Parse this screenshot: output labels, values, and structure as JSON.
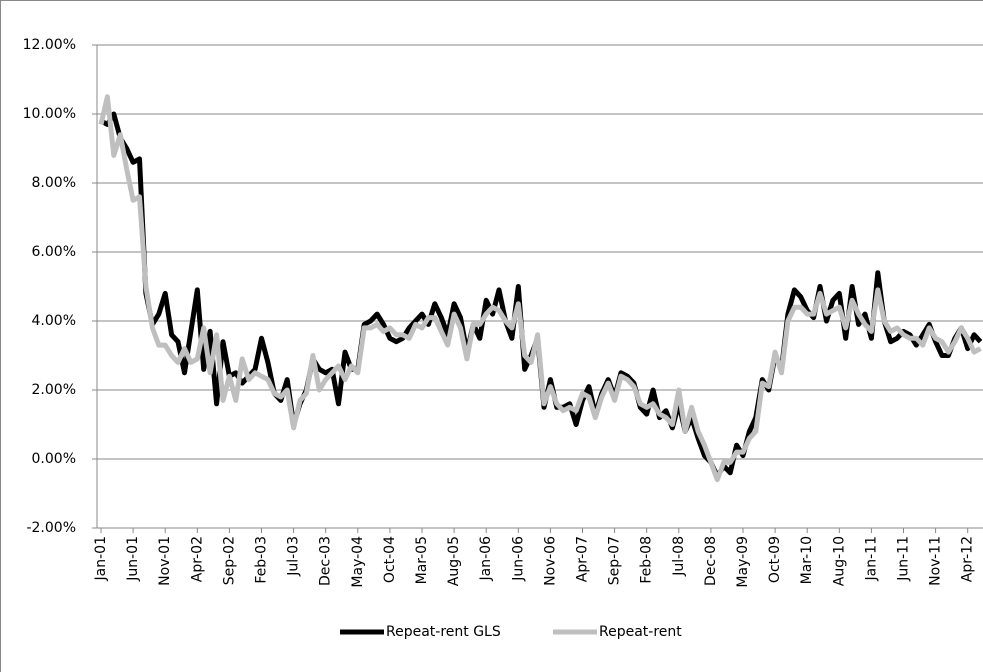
{
  "chart_data": {
    "type": "line",
    "categories": [
      "Jan-01",
      null,
      null,
      null,
      null,
      "Jun-01",
      null,
      null,
      null,
      null,
      "Nov-01",
      null,
      null,
      null,
      null,
      "Apr-02",
      null,
      null,
      null,
      null,
      "Sep-02",
      null,
      null,
      null,
      null,
      "Feb-03",
      null,
      null,
      null,
      null,
      "Jul-03",
      null,
      null,
      null,
      null,
      "Dec-03",
      null,
      null,
      null,
      null,
      "May-04",
      null,
      null,
      null,
      null,
      "Oct-04",
      null,
      null,
      null,
      null,
      "Mar-05",
      null,
      null,
      null,
      null,
      "Aug-05",
      null,
      null,
      null,
      null,
      "Jan-06",
      null,
      null,
      null,
      null,
      "Jun-06",
      null,
      null,
      null,
      null,
      "Nov-06",
      null,
      null,
      null,
      null,
      "Apr-07",
      null,
      null,
      null,
      null,
      "Sep-07",
      null,
      null,
      null,
      null,
      "Feb-08",
      null,
      null,
      null,
      null,
      "Jul-08",
      null,
      null,
      null,
      null,
      "Dec-08",
      null,
      null,
      null,
      null,
      "May-09",
      null,
      null,
      null,
      null,
      "Oct-09",
      null,
      null,
      null,
      null,
      "Mar-10",
      null,
      null,
      null,
      null,
      "Aug-10",
      null,
      null,
      null,
      null,
      "Jan-11",
      null,
      null,
      null,
      null,
      "Jun-11",
      null,
      null,
      null,
      null,
      "Nov-11",
      null,
      null,
      null,
      null,
      "Apr-12",
      null,
      null
    ],
    "series": [
      {
        "name": "Repeat-rent GLS",
        "color": "#000000",
        "values": [
          9.8,
          9.7,
          10.0,
          9.3,
          9.0,
          8.6,
          8.7,
          4.8,
          3.9,
          4.2,
          4.8,
          3.6,
          3.4,
          2.5,
          3.7,
          4.9,
          2.6,
          3.7,
          1.6,
          3.4,
          2.4,
          2.5,
          2.2,
          2.4,
          2.6,
          3.5,
          2.8,
          1.9,
          1.7,
          2.3,
          1.0,
          1.6,
          2.0,
          2.9,
          2.6,
          2.5,
          2.6,
          1.6,
          3.1,
          2.6,
          2.6,
          3.9,
          4.0,
          4.2,
          3.9,
          3.5,
          3.4,
          3.5,
          3.8,
          4.0,
          4.2,
          3.9,
          4.5,
          4.1,
          3.6,
          4.5,
          4.1,
          3.1,
          3.9,
          3.5,
          4.6,
          4.2,
          4.9,
          4.0,
          3.5,
          5.0,
          2.6,
          3.0,
          3.5,
          1.5,
          2.3,
          1.5,
          1.5,
          1.6,
          1.0,
          1.7,
          2.1,
          1.3,
          1.9,
          2.3,
          1.8,
          2.5,
          2.4,
          2.2,
          1.5,
          1.3,
          2.0,
          1.2,
          1.4,
          0.9,
          1.6,
          0.8,
          1.2,
          0.6,
          0.1,
          -0.1,
          -0.5,
          -0.2,
          -0.4,
          0.4,
          0.1,
          0.8,
          1.2,
          2.3,
          2.0,
          3.0,
          2.6,
          4.2,
          4.9,
          4.7,
          4.3,
          4.1,
          5.0,
          4.0,
          4.6,
          4.8,
          3.5,
          5.0,
          3.9,
          4.2,
          3.5,
          5.4,
          4.0,
          3.4,
          3.5,
          3.7,
          3.6,
          3.3,
          3.6,
          3.9,
          3.4,
          3.0,
          3.0,
          3.5,
          3.8,
          3.2,
          3.6,
          3.4
        ]
      },
      {
        "name": "Repeat-rent",
        "color": "#bfbfbf",
        "values": [
          9.7,
          10.5,
          8.8,
          9.4,
          8.4,
          7.5,
          7.6,
          5.0,
          3.8,
          3.3,
          3.3,
          3.0,
          2.8,
          3.2,
          2.8,
          2.9,
          3.8,
          2.5,
          3.6,
          1.7,
          2.4,
          1.7,
          2.9,
          2.3,
          2.5,
          2.4,
          2.3,
          1.9,
          1.8,
          2.0,
          0.9,
          1.7,
          1.9,
          3.0,
          2.0,
          2.3,
          2.5,
          2.7,
          2.3,
          2.7,
          2.5,
          3.8,
          3.8,
          3.9,
          3.7,
          3.8,
          3.6,
          3.6,
          3.5,
          3.9,
          3.8,
          4.1,
          4.1,
          3.7,
          3.3,
          4.2,
          3.8,
          2.9,
          3.9,
          3.9,
          4.2,
          4.4,
          4.3,
          4.0,
          3.8,
          4.5,
          3.0,
          2.8,
          3.6,
          1.6,
          2.1,
          1.6,
          1.4,
          1.5,
          1.4,
          1.9,
          1.8,
          1.2,
          1.8,
          2.2,
          1.7,
          2.4,
          2.3,
          2.1,
          1.6,
          1.5,
          1.6,
          1.3,
          1.2,
          1.0,
          2.0,
          0.8,
          1.5,
          0.8,
          0.4,
          -0.1,
          -0.6,
          -0.1,
          -0.1,
          0.2,
          0.2,
          0.6,
          0.8,
          2.2,
          2.1,
          3.1,
          2.5,
          4.0,
          4.4,
          4.4,
          4.2,
          4.2,
          4.8,
          4.2,
          4.3,
          4.4,
          3.8,
          4.6,
          4.2,
          3.9,
          3.7,
          4.9,
          4.0,
          3.7,
          3.8,
          3.6,
          3.5,
          3.5,
          3.3,
          3.8,
          3.5,
          3.4,
          3.1,
          3.4,
          3.8,
          3.5,
          3.1,
          3.2
        ]
      }
    ],
    "ylim": [
      -2,
      12
    ],
    "yticks": [
      {
        "value": -2,
        "label": "-2.00%"
      },
      {
        "value": 0,
        "label": "0.00%"
      },
      {
        "value": 2,
        "label": "2.00%"
      },
      {
        "value": 4,
        "label": "4.00%"
      },
      {
        "value": 6,
        "label": "6.00%"
      },
      {
        "value": 8,
        "label": "8.00%"
      },
      {
        "value": 10,
        "label": "10.00%"
      },
      {
        "value": 12,
        "label": "12.00%"
      }
    ],
    "grid": true,
    "legend": "bottom"
  }
}
